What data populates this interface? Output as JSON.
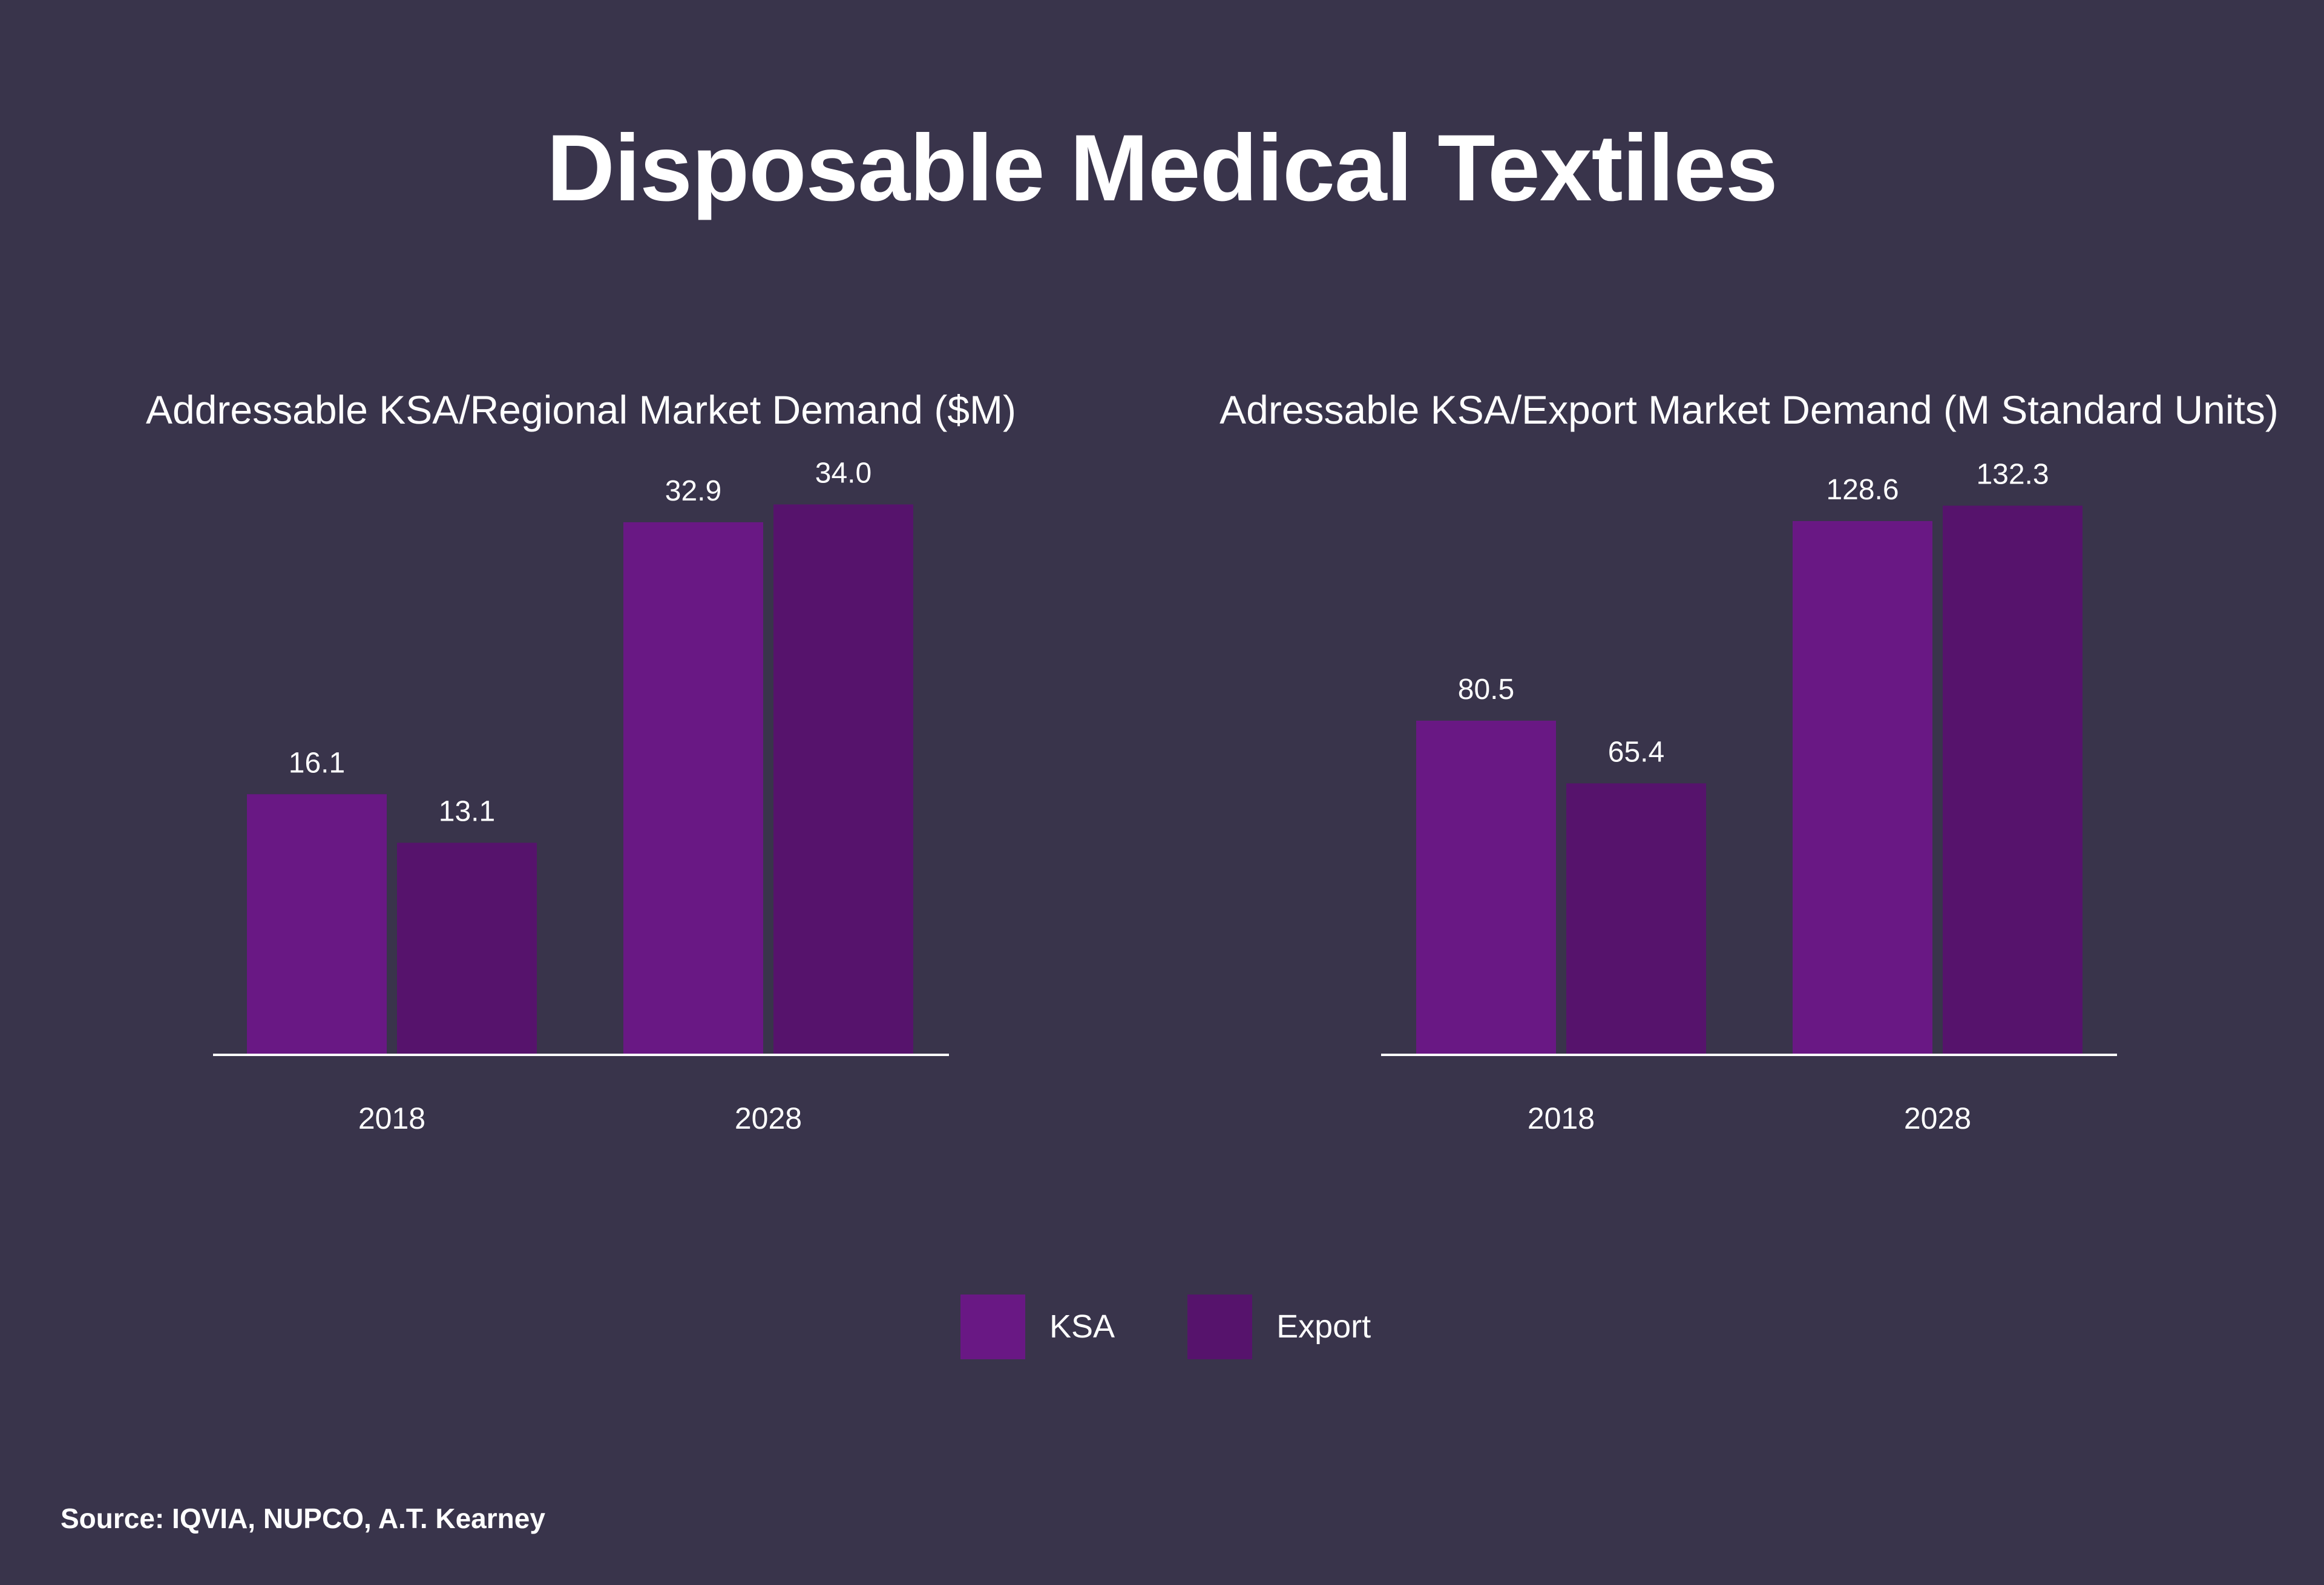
{
  "title": "Disposable Medical Textiles",
  "colors": {
    "background": "#39344b",
    "ksa": "#691884",
    "export": "#56136c",
    "text": "#ffffff",
    "axis": "#ffffff"
  },
  "legend": {
    "items": [
      {
        "label": "KSA",
        "color": "#691884"
      },
      {
        "label": "Export",
        "color": "#56136c"
      }
    ]
  },
  "source": "Source: IQVIA, NUPCO, A.T. Kearney",
  "chart_data": [
    {
      "type": "bar",
      "title": "Addressable KSA/Regional Market Demand ($M)",
      "categories": [
        "2018",
        "2028"
      ],
      "series": [
        {
          "name": "KSA",
          "values": [
            16.1,
            32.9
          ],
          "labels": [
            "16.1",
            "32.9"
          ]
        },
        {
          "name": "Export",
          "values": [
            13.1,
            34.0
          ],
          "labels": [
            "13.1",
            "34.0"
          ]
        }
      ],
      "ylim": [
        0,
        40
      ],
      "xlabel": "",
      "ylabel": "",
      "grid": false
    },
    {
      "type": "bar",
      "title": "Adressable KSA/Export Market Demand (M Standard Units)",
      "categories": [
        "2018",
        "2028"
      ],
      "series": [
        {
          "name": "KSA",
          "values": [
            80.5,
            128.6
          ],
          "labels": [
            "80.5",
            "128.6"
          ]
        },
        {
          "name": "Export",
          "values": [
            65.4,
            132.3
          ],
          "labels": [
            "65.4",
            "132.3"
          ]
        }
      ],
      "ylim": [
        0,
        156
      ],
      "xlabel": "",
      "ylabel": "",
      "grid": false
    }
  ]
}
